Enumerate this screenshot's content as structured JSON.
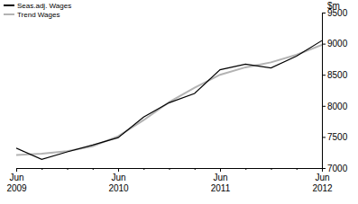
{
  "chart_data": {
    "type": "line",
    "y_label": "$m",
    "categories": [
      "Jun 2009",
      null,
      null,
      null,
      "Jun 2010",
      null,
      null,
      null,
      "Jun 2011",
      null,
      null,
      null,
      "Jun 2012"
    ],
    "series": [
      {
        "name": "Seas.adj. Wages",
        "color": "#000000",
        "values": [
          7320,
          7140,
          7260,
          7370,
          7490,
          7820,
          8050,
          8200,
          8580,
          8670,
          8610,
          8800,
          9050
        ]
      },
      {
        "name": "Trend Wages",
        "color": "#b3b3b3",
        "values": [
          7210,
          7230,
          7270,
          7350,
          7510,
          7770,
          8060,
          8290,
          8500,
          8620,
          8700,
          8820,
          8980
        ]
      }
    ],
    "ylim": [
      7000,
      9500
    ],
    "yticks": [
      7000,
      7500,
      8000,
      8500,
      9000,
      9500
    ],
    "grid": false,
    "legend": "top-left"
  }
}
